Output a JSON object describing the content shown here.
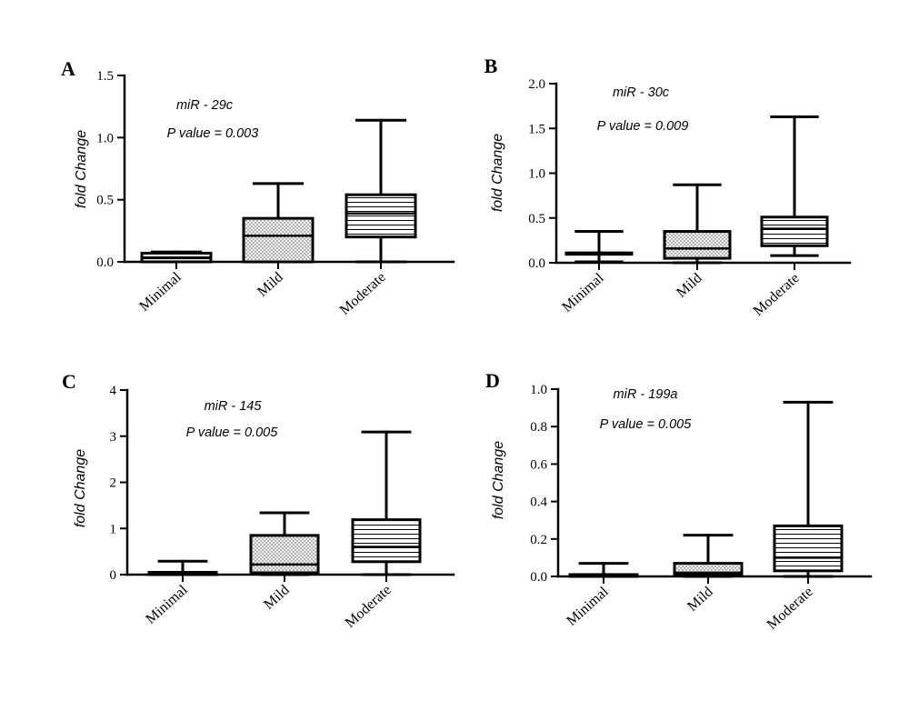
{
  "chart_data": [
    {
      "panel": "A",
      "type": "box",
      "title": "miR - 29c",
      "annotation": "P value = 0.003",
      "xlabel": "",
      "ylabel": "fold Change",
      "ylim": [
        0,
        1.5
      ],
      "yticks": [
        0,
        0.5,
        1.0,
        1.5
      ],
      "ytick_labels": [
        "0.0",
        "0.5",
        "1.0",
        "1.5"
      ],
      "grid": false,
      "stroke_color": "#000000",
      "categories": [
        "Minimal",
        "Mild",
        "Moderate"
      ],
      "boxes": [
        {
          "min": 0.0,
          "q1": 0.0,
          "median": 0.03,
          "q3": 0.07,
          "max": 0.08,
          "fill": "horizontal-lines"
        },
        {
          "min": 0.0,
          "q1": 0.0,
          "median": 0.21,
          "q3": 0.35,
          "max": 0.63,
          "fill": "dots"
        },
        {
          "min": 0.0,
          "q1": 0.2,
          "median": 0.39,
          "q3": 0.54,
          "max": 1.14,
          "fill": "horizontal-lines"
        }
      ]
    },
    {
      "panel": "B",
      "type": "box",
      "title": "miR - 30c",
      "annotation": "P value = 0.009",
      "xlabel": "",
      "ylabel": "fold Change",
      "ylim": [
        0,
        2.0
      ],
      "yticks": [
        0,
        0.5,
        1.0,
        1.5,
        2.0
      ],
      "ytick_labels": [
        "0.0",
        "0.5",
        "1.0",
        "1.5",
        "2.0"
      ],
      "grid": false,
      "stroke_color": "#000000",
      "categories": [
        "Minimal",
        "Mild",
        "Moderate"
      ],
      "boxes": [
        {
          "min": 0.01,
          "q1": 0.1,
          "median": 0.11,
          "q3": 0.11,
          "max": 0.35,
          "fill": "horizontal-lines"
        },
        {
          "min": 0.0,
          "q1": 0.05,
          "median": 0.16,
          "q3": 0.35,
          "max": 0.87,
          "fill": "dots"
        },
        {
          "min": 0.08,
          "q1": 0.19,
          "median": 0.38,
          "q3": 0.51,
          "max": 1.63,
          "fill": "horizontal-lines"
        }
      ]
    },
    {
      "panel": "C",
      "type": "box",
      "title": "miR - 145",
      "annotation": "P value = 0.005",
      "xlabel": "",
      "ylabel": "fold Change",
      "ylim": [
        0,
        4
      ],
      "yticks": [
        0,
        1,
        2,
        3,
        4
      ],
      "ytick_labels": [
        "0",
        "1",
        "2",
        "3",
        "4"
      ],
      "grid": false,
      "stroke_color": "#000000",
      "categories": [
        "Minimal",
        "Mild",
        "Moderate"
      ],
      "boxes": [
        {
          "min": 0.0,
          "q1": 0.0,
          "median": 0.02,
          "q3": 0.05,
          "max": 0.29,
          "fill": "horizontal-lines"
        },
        {
          "min": 0.0,
          "q1": 0.04,
          "median": 0.22,
          "q3": 0.85,
          "max": 1.34,
          "fill": "dots"
        },
        {
          "min": 0.0,
          "q1": 0.28,
          "median": 0.6,
          "q3": 1.19,
          "max": 3.09,
          "fill": "horizontal-lines"
        }
      ]
    },
    {
      "panel": "D",
      "type": "box",
      "title": "miR - 199a",
      "annotation": "P value = 0.005",
      "xlabel": "",
      "ylabel": "fold Change",
      "ylim": [
        0,
        1.0
      ],
      "yticks": [
        0,
        0.2,
        0.4,
        0.6,
        0.8,
        1.0
      ],
      "ytick_labels": [
        "0.0",
        "0.2",
        "0.4",
        "0.6",
        "0.8",
        "1.0"
      ],
      "grid": false,
      "stroke_color": "#000000",
      "categories": [
        "Minimal",
        "Mild",
        "Moderate"
      ],
      "boxes": [
        {
          "min": 0.0,
          "q1": 0.0,
          "median": 0.005,
          "q3": 0.01,
          "max": 0.07,
          "fill": "horizontal-lines"
        },
        {
          "min": 0.0,
          "q1": 0.01,
          "median": 0.02,
          "q3": 0.07,
          "max": 0.22,
          "fill": "dots"
        },
        {
          "min": 0.0,
          "q1": 0.03,
          "median": 0.1,
          "q3": 0.27,
          "max": 0.93,
          "fill": "horizontal-lines"
        }
      ]
    }
  ]
}
